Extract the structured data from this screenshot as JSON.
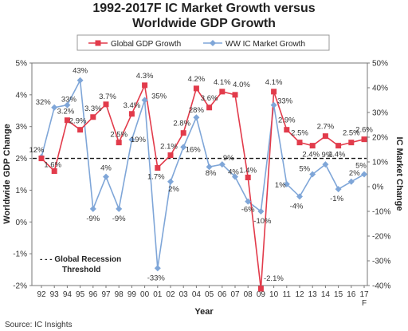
{
  "chart_data": {
    "type": "line",
    "title_line1": "1992-2017F IC Market Growth versus",
    "title_line2": "Worldwide GDP Growth",
    "categories": [
      "92",
      "93",
      "94",
      "95",
      "96",
      "97",
      "98",
      "99",
      "00",
      "01",
      "02",
      "03",
      "04",
      "05",
      "06",
      "07",
      "08",
      "09",
      "10",
      "11",
      "12",
      "13",
      "14",
      "15",
      "16",
      "17"
    ],
    "last_category_suffix": "F",
    "xlabel": "Year",
    "ylabel_left": "Worldwide GDP Change",
    "ylabel_right": "IC Market Change",
    "ylim_left": [
      -2,
      5
    ],
    "ylim_right": [
      -40,
      50
    ],
    "left_ticks": [
      "-2%",
      "-1%",
      "0%",
      "1%",
      "2%",
      "3%",
      "4%",
      "5%"
    ],
    "right_ticks": [
      "-40%",
      "-30%",
      "-20%",
      "-10%",
      "0%",
      "10%",
      "20%",
      "30%",
      "40%",
      "50%"
    ],
    "series": [
      {
        "name": "Global GDP Growth",
        "axis": "left",
        "color": "#e23b4b",
        "marker": "square",
        "values": [
          2.0,
          1.6,
          3.2,
          2.9,
          3.3,
          3.7,
          2.5,
          3.4,
          4.3,
          1.7,
          2.1,
          2.8,
          4.2,
          3.6,
          4.1,
          4.0,
          1.4,
          -2.1,
          4.1,
          2.9,
          2.5,
          2.4,
          2.7,
          2.4,
          2.5,
          2.6
        ],
        "labels": [
          "",
          "1.6%",
          "3.2%",
          "2.9%",
          "3.3%",
          "3.7%",
          "2.5%",
          "3.4%",
          "4.3%",
          "1.7%",
          "2.1%",
          "2.8%",
          "4.2%",
          "3.6%",
          "4.1%",
          "4.0%",
          "1.4%",
          "-2.1%",
          "4.1%",
          "2.9%",
          "2.5%",
          "2.4%",
          "2.7%",
          "2.4%",
          "2.5%",
          "2.6%"
        ]
      },
      {
        "name": "WW IC Market Growth",
        "axis": "right",
        "color": "#7fa6d8",
        "marker": "diamond",
        "values": [
          12,
          32,
          33,
          43,
          -9,
          4,
          -9,
          19,
          35,
          -33,
          2,
          16,
          28,
          8,
          9,
          4,
          -6,
          -10,
          33,
          1,
          -4,
          5,
          9,
          -1,
          2,
          5
        ],
        "labels": [
          "12%",
          "32%",
          "33%",
          "43%",
          "-9%",
          "4%",
          "-9%",
          "19%",
          "35%",
          "-33%",
          "2%",
          "16%",
          "28%",
          "8%",
          "9%",
          "4%",
          "-6%",
          "-10%",
          "33%",
          "1%",
          "-4%",
          "5%",
          "9%",
          "-1%",
          "2%",
          "5%"
        ]
      }
    ],
    "recession_threshold": 2.0,
    "annotation_line1": "Global Recession",
    "annotation_line2": "Threshold",
    "annotation_prefix": "- - -",
    "legend_position": "top-center",
    "source": "Source: IC Insights"
  }
}
